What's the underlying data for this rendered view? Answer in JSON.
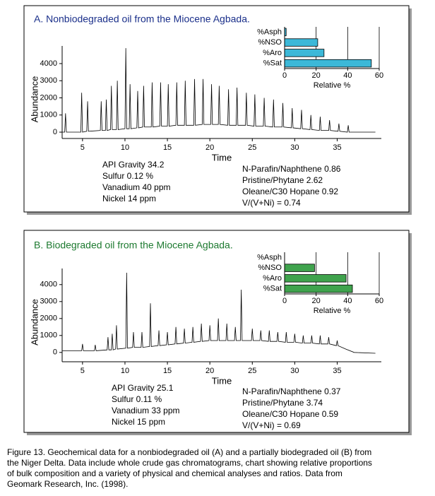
{
  "chart_data": [
    {
      "type": "line",
      "title": "A.  Nonbiodegraded oil from the Miocene Agbada.",
      "xlabel": "Time",
      "ylabel": "Abundance",
      "xlim": [
        2.6,
        40.2
      ],
      "xticks": [
        5,
        10,
        15,
        20,
        25,
        30,
        35
      ],
      "ylim": [
        -370,
        5030
      ],
      "yticks": [
        0,
        1000,
        2000,
        3000,
        4000
      ],
      "title_color": "#1a2f8a",
      "color": "#000000",
      "x": [
        2.6,
        2.9,
        3,
        3.1,
        4.8,
        4.9,
        5,
        5.5,
        5.6,
        5.7,
        7.1,
        7.2,
        7.3,
        7.7,
        7.8,
        7.9,
        8.3,
        8.4,
        8.5,
        9,
        9.1,
        9.2,
        10,
        10.1,
        10.2,
        10.5,
        10.6,
        10.7,
        11.4,
        11.5,
        11.6,
        12.1,
        12.2,
        12.3,
        13.1,
        13.2,
        13.3,
        14.1,
        14.2,
        14.3,
        15,
        15.1,
        15.2,
        16,
        16.1,
        16.2,
        17,
        17.1,
        17.2,
        18.1,
        18.2,
        18.3,
        19.1,
        19.2,
        19.3,
        20.1,
        20.2,
        20.3,
        21,
        21.1,
        21.2,
        22.1,
        22.2,
        22.3,
        23.1,
        23.2,
        23.3,
        24.2,
        24.3,
        24.4,
        25.2,
        25.3,
        25.4,
        26.3,
        26.4,
        26.5,
        27.4,
        27.5,
        27.6,
        28.5,
        28.6,
        28.7,
        29.6,
        29.7,
        29.8,
        30.7,
        30.8,
        30.9,
        31.8,
        31.9,
        32,
        32.9,
        33,
        33.1,
        34,
        34.1,
        34.2,
        35.1,
        35.2,
        35.3,
        36.2,
        36.3,
        36.4,
        39.5
      ],
      "values": [
        0,
        0,
        1100,
        0,
        0,
        2300,
        0,
        50,
        1800,
        50,
        100,
        1800,
        100,
        100,
        1900,
        100,
        150,
        2700,
        150,
        150,
        3000,
        150,
        200,
        4900,
        200,
        200,
        2800,
        200,
        250,
        2400,
        250,
        300,
        2700,
        300,
        300,
        2900,
        300,
        350,
        2900,
        350,
        350,
        2800,
        350,
        400,
        2900,
        400,
        400,
        3000,
        400,
        400,
        3100,
        400,
        450,
        3100,
        450,
        450,
        2800,
        450,
        450,
        2700,
        450,
        400,
        2500,
        400,
        400,
        2600,
        400,
        400,
        2300,
        400,
        350,
        2200,
        350,
        350,
        2000,
        350,
        300,
        1900,
        300,
        300,
        1700,
        300,
        250,
        1400,
        250,
        200,
        1300,
        200,
        150,
        1000,
        150,
        100,
        900,
        100,
        100,
        700,
        100,
        50,
        500,
        50,
        0,
        400,
        0,
        0
      ],
      "annotations": {
        "left": [
          "API Gravity  34.2",
          "Sulfur  0.12 %",
          "Vanadium  40 ppm",
          "Nickel  14 ppm"
        ],
        "right": [
          "N-Parafin/Naphthene  0.86",
          "Pristine/Phytane  2.62",
          "Oleane/C30 Hopane  0.92",
          "V/(V+Ni) = 0.74"
        ]
      }
    },
    {
      "type": "bar",
      "orientation": "horizontal",
      "categories": [
        "%Asph",
        "%NSO",
        "%Aro",
        "%Sat"
      ],
      "values": [
        1,
        21,
        25,
        55
      ],
      "color": "#3cb8d8",
      "xlabel": "Relative %",
      "xlim": [
        0,
        60
      ],
      "xticks": [
        0,
        20,
        40,
        60
      ],
      "grid": true
    },
    {
      "type": "line",
      "title": "B.  Biodegraded oil from the Miocene Agbada.",
      "xlabel": "Time",
      "ylabel": "Abundance",
      "xlim": [
        2.6,
        40.2
      ],
      "xticks": [
        5,
        10,
        15,
        20,
        25,
        30,
        35
      ],
      "ylim": [
        -550,
        4950
      ],
      "yticks": [
        0,
        1000,
        2000,
        3000,
        4000
      ],
      "title_color": "#1d7a30",
      "color": "#000000",
      "x": [
        2.6,
        4.9,
        5,
        5.1,
        6.4,
        6.5,
        6.6,
        7.9,
        8,
        8.1,
        8.4,
        8.5,
        8.6,
        8.9,
        9,
        9.1,
        10.1,
        10.2,
        10.3,
        10.9,
        11,
        11.1,
        11.9,
        12,
        12.1,
        12.9,
        13,
        13.1,
        13.9,
        14,
        14.1,
        14.9,
        15,
        15.1,
        15.9,
        16,
        16.1,
        16.9,
        17,
        17.1,
        17.9,
        18,
        18.1,
        18.9,
        19,
        19.1,
        19.9,
        20,
        20.1,
        20.9,
        21,
        21.1,
        21.9,
        22,
        22.1,
        22.9,
        23,
        23.1,
        23.6,
        23.7,
        23.8,
        24.9,
        25,
        25.1,
        25.9,
        26,
        26.1,
        26.9,
        27,
        27.1,
        27.9,
        28,
        28.1,
        28.9,
        29,
        29.1,
        29.9,
        30,
        30.1,
        30.9,
        31,
        31.1,
        31.9,
        32,
        32.1,
        32.9,
        33,
        33.1,
        33.9,
        34,
        34.1,
        34.9,
        35,
        35.1,
        36,
        37,
        39.5
      ],
      "values": [
        100,
        100,
        500,
        100,
        100,
        450,
        100,
        150,
        900,
        150,
        150,
        1100,
        150,
        200,
        1600,
        200,
        250,
        4700,
        250,
        300,
        1200,
        300,
        300,
        1200,
        300,
        350,
        2900,
        350,
        400,
        1300,
        400,
        450,
        1200,
        450,
        500,
        1500,
        500,
        550,
        1400,
        550,
        600,
        1500,
        600,
        650,
        1700,
        650,
        700,
        1600,
        700,
        700,
        2000,
        700,
        700,
        1700,
        700,
        700,
        1500,
        700,
        700,
        3700,
        700,
        700,
        1400,
        700,
        700,
        1300,
        700,
        650,
        1300,
        650,
        650,
        1200,
        650,
        600,
        1200,
        600,
        600,
        1100,
        600,
        550,
        1000,
        550,
        550,
        1000,
        550,
        500,
        1000,
        500,
        500,
        900,
        500,
        400,
        700,
        400,
        200,
        0,
        -50
      ],
      "annotations": {
        "left": [
          "API Gravity  25.1",
          "Sulfur  0.11 %",
          "Vanadium  33 ppm",
          "Nickel  15 ppm"
        ],
        "right": [
          "N-Parafin/Naphthene  0.37",
          "Pristine/Phytane  3.74",
          "Oleane/C30 Hopane  0.59",
          "V/(V+Ni) = 0.69"
        ]
      }
    },
    {
      "type": "bar",
      "orientation": "horizontal",
      "categories": [
        "%Asph",
        "%NSO",
        "%Aro",
        "%Sat"
      ],
      "values": [
        0,
        19,
        39,
        43
      ],
      "color": "#3fa34d",
      "xlabel": "Relative %",
      "xlim": [
        0,
        60
      ],
      "xticks": [
        0,
        20,
        40,
        60
      ],
      "grid": true
    }
  ],
  "caption": [
    "Figure 13.  Geochemical data for a nonbiodegraded oil (A) and a partially biodegraded oil (B) from",
    "the Niger Delta.  Data include whole crude gas chromatograms, chart showing relative proportions",
    "of bulk composition and a variety of physical and chemical analyses and ratios.  Data from",
    "Geomark Research, Inc. (1998)."
  ]
}
